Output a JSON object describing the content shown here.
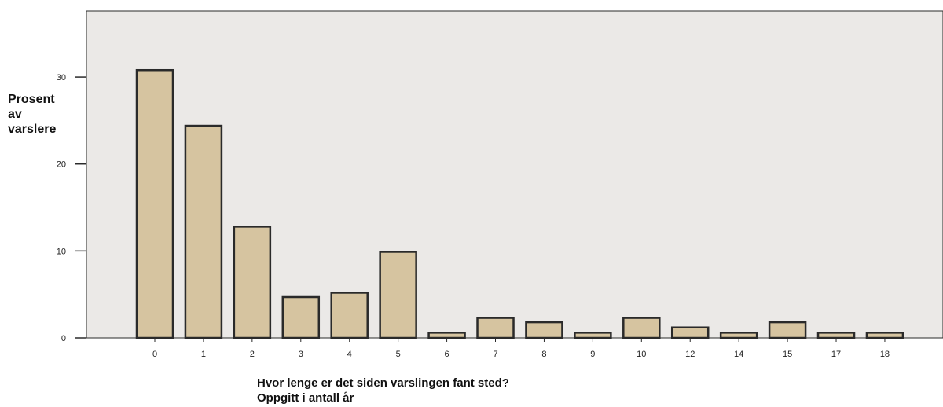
{
  "chart_data": {
    "type": "bar",
    "categories": [
      "0",
      "1",
      "2",
      "3",
      "4",
      "5",
      "6",
      "7",
      "8",
      "9",
      "10",
      "12",
      "14",
      "15",
      "17",
      "18"
    ],
    "values": [
      30.8,
      24.4,
      12.8,
      4.7,
      5.2,
      9.9,
      0.6,
      2.3,
      1.8,
      0.6,
      2.3,
      1.2,
      0.6,
      1.8,
      0.6,
      0.6
    ],
    "ylabel": "Prosent\nav\nvarslere",
    "xlabel": "Hvor lenge er det siden varslingen fant sted?\nOppgitt i antall år",
    "ylim": [
      0,
      37.6
    ],
    "yticks": [
      0,
      10,
      20,
      30
    ],
    "grid": false,
    "colors": {
      "plot_background": "#ebe9e7",
      "bar_fill": "#d6c4a0",
      "bar_stroke": "#2a2a2a"
    }
  }
}
